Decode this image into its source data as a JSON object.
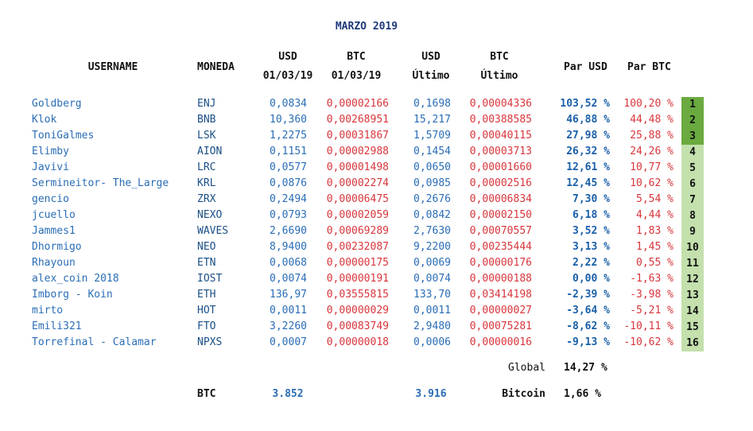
{
  "title": "MARZO 2019",
  "headers": {
    "username": "USERNAME",
    "moneda": "MONEDA",
    "usd1": "USD",
    "usd2": "01/03/19",
    "btc1": "BTC",
    "btc2": "01/03/19",
    "usdl1": "USD",
    "usdl2": "Último",
    "btcl1": "BTC",
    "btcl2": "Último",
    "parusd": "Par USD",
    "parbtc": "Par BTC"
  },
  "rows": [
    {
      "user": "Goldberg",
      "coin": "ENJ",
      "usd": "0,0834",
      "btc": "0,00002166",
      "usd_last": "0,1698",
      "btc_last": "0,00004336",
      "par_usd": "103,52 %",
      "par_btc": "100,20 %",
      "rank": "1"
    },
    {
      "user": "Klok",
      "coin": "BNB",
      "usd": "10,360",
      "btc": "0,00268951",
      "usd_last": "15,217",
      "btc_last": "0,00388585",
      "par_usd": "46,88 %",
      "par_btc": "44,48 %",
      "rank": "2"
    },
    {
      "user": "ToniGalmes",
      "coin": "LSK",
      "usd": "1,2275",
      "btc": "0,00031867",
      "usd_last": "1,5709",
      "btc_last": "0,00040115",
      "par_usd": "27,98 %",
      "par_btc": "25,88 %",
      "rank": "3"
    },
    {
      "user": "Elimby",
      "coin": "AION",
      "usd": "0,1151",
      "btc": "0,00002988",
      "usd_last": "0,1454",
      "btc_last": "0,00003713",
      "par_usd": "26,32 %",
      "par_btc": "24,26 %",
      "rank": "4"
    },
    {
      "user": "Javivi",
      "coin": "LRC",
      "usd": "0,0577",
      "btc": "0,00001498",
      "usd_last": "0,0650",
      "btc_last": "0,00001660",
      "par_usd": "12,61 %",
      "par_btc": "10,77 %",
      "rank": "5"
    },
    {
      "user": "Sermineitor- The_Large",
      "coin": "KRL",
      "usd": "0,0876",
      "btc": "0,00002274",
      "usd_last": "0,0985",
      "btc_last": "0,00002516",
      "par_usd": "12,45 %",
      "par_btc": "10,62 %",
      "rank": "6"
    },
    {
      "user": "gencio",
      "coin": "ZRX",
      "usd": "0,2494",
      "btc": "0,00006475",
      "usd_last": "0,2676",
      "btc_last": "0,00006834",
      "par_usd": "7,30 %",
      "par_btc": "5,54 %",
      "rank": "7"
    },
    {
      "user": "jcuello",
      "coin": "NEXO",
      "usd": "0,0793",
      "btc": "0,00002059",
      "usd_last": "0,0842",
      "btc_last": "0,00002150",
      "par_usd": "6,18 %",
      "par_btc": "4,44 %",
      "rank": "8"
    },
    {
      "user": "Jammes1",
      "coin": "WAVES",
      "usd": "2,6690",
      "btc": "0,00069289",
      "usd_last": "2,7630",
      "btc_last": "0,00070557",
      "par_usd": "3,52 %",
      "par_btc": "1,83 %",
      "rank": "9"
    },
    {
      "user": "Dhormigo",
      "coin": "NEO",
      "usd": "8,9400",
      "btc": "0,00232087",
      "usd_last": "9,2200",
      "btc_last": "0,00235444",
      "par_usd": "3,13 %",
      "par_btc": "1,45 %",
      "rank": "10"
    },
    {
      "user": "Rhayoun",
      "coin": "ETN",
      "usd": "0,0068",
      "btc": "0,00000175",
      "usd_last": "0,0069",
      "btc_last": "0,00000176",
      "par_usd": "2,22 %",
      "par_btc": "0,55 %",
      "rank": "11"
    },
    {
      "user": "alex_coin 2018",
      "coin": "IOST",
      "usd": "0,0074",
      "btc": "0,00000191",
      "usd_last": "0,0074",
      "btc_last": "0,00000188",
      "par_usd": "0,00 %",
      "par_btc": "-1,63 %",
      "rank": "12"
    },
    {
      "user": "Imborg - Koin",
      "coin": "ETH",
      "usd": "136,97",
      "btc": "0,03555815",
      "usd_last": "133,70",
      "btc_last": "0,03414198",
      "par_usd": "-2,39 %",
      "par_btc": "-3,98 %",
      "rank": "13"
    },
    {
      "user": "mirto",
      "coin": "HOT",
      "usd": "0,0011",
      "btc": "0,00000029",
      "usd_last": "0,0011",
      "btc_last": "0,00000027",
      "par_usd": "-3,64 %",
      "par_btc": "-5,21 %",
      "rank": "14"
    },
    {
      "user": "Emili321",
      "coin": "FTO",
      "usd": "3,2260",
      "btc": "0,00083749",
      "usd_last": "2,9480",
      "btc_last": "0,00075281",
      "par_usd": "-8,62 %",
      "par_btc": "-10,11 %",
      "rank": "15"
    },
    {
      "user": "Torrefinal - Calamar",
      "coin": "NPXS",
      "usd": "0,0007",
      "btc": "0,00000018",
      "usd_last": "0,0006",
      "btc_last": "0,00000016",
      "par_usd": "-9,13 %",
      "par_btc": "-10,62 %",
      "rank": "16"
    }
  ],
  "global": {
    "label": "Global",
    "value": "14,27 %"
  },
  "footer": {
    "btc_label": "BTC",
    "btc_start": "3.852",
    "btc_last": "3.916",
    "bitcoin_label": "Bitcoin",
    "bitcoin_value": "1,66 %"
  },
  "colors": {
    "title": "#1f3a7a",
    "usd_values": "#2a6db5",
    "btc_values": "#d8363c",
    "rank_top": "#6aaa3f",
    "rank_rest": "#c3e0ad"
  }
}
